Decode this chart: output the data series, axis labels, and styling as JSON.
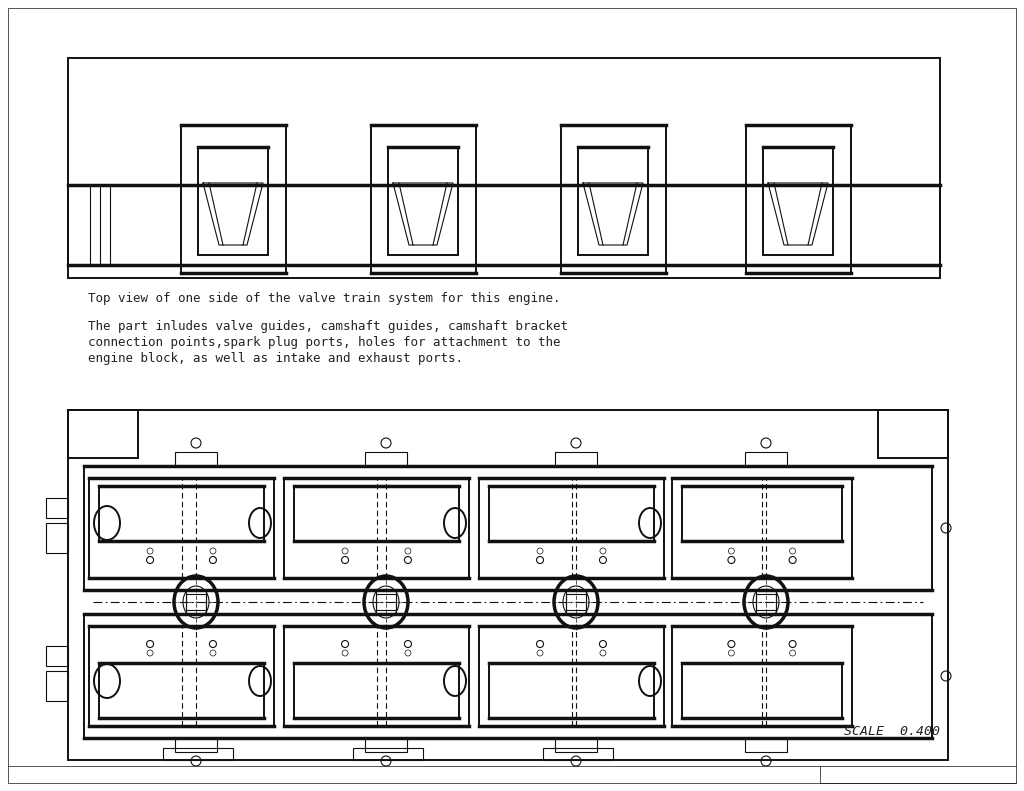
{
  "bg_color": "#ffffff",
  "line_color": "#111111",
  "text_color": "#222222",
  "title_line1": "Top view of one side of the valve train system for this engine.",
  "title_line2": "The part inludes valve guides, camshaft guides, camshaft bracket",
  "title_line3": "connection points,spark plug ports, holes for attachment to the",
  "title_line4": "engine block, as well as intake and exhaust ports.",
  "scale_text": "SCALE  0.400",
  "lw_hair": 0.5,
  "lw_thin": 0.8,
  "lw_med": 1.4,
  "lw_thick": 2.5
}
